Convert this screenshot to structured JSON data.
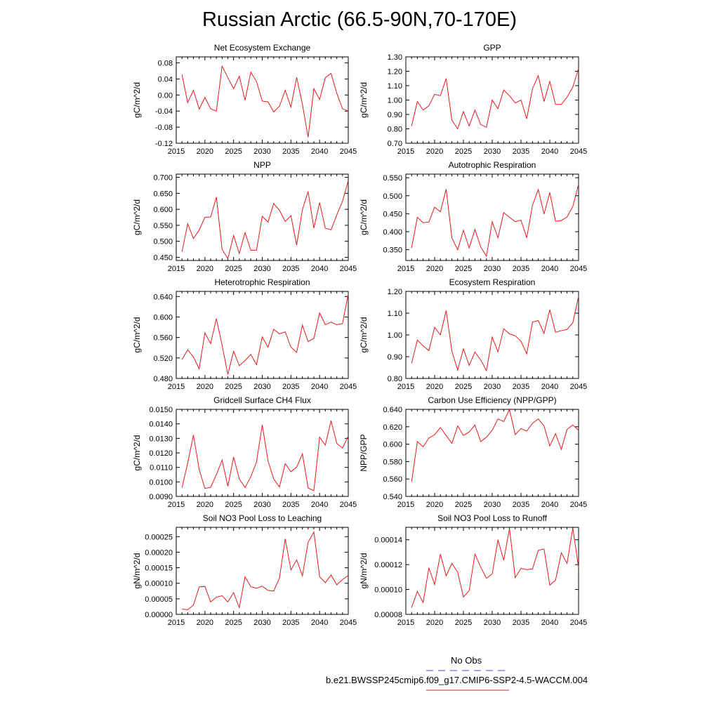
{
  "title": "Russian Arctic (66.5-90N,70-170E)",
  "legend": [
    {
      "label": "No Obs",
      "color": "#4a4ad8",
      "style": "dashed"
    },
    {
      "label": "b.e21.BWSSP245cmip6.f09_g17.CMIP6-SSP2-4.5-WACCM.004",
      "color": "#e81a1a",
      "style": "solid"
    }
  ],
  "chart_data": [
    {
      "type": "line",
      "title": "Net Ecosystem Exchange",
      "ylabel": "gC/m^2/d",
      "xlim": [
        2015,
        2045
      ],
      "ylim": [
        -0.12,
        0.095
      ],
      "xticks": [
        2015,
        2020,
        2025,
        2030,
        2035,
        2040,
        2045
      ],
      "xticklabels": [
        "2015",
        "2020",
        "2025",
        "2030",
        "2035",
        "2040",
        "2045"
      ],
      "yticks": [
        -0.12,
        -0.08,
        -0.04,
        0.0,
        0.04,
        0.08
      ],
      "yticklabels": [
        "-0.12",
        "-0.08",
        "-0.04",
        "0.00",
        "0.04",
        "0.08"
      ],
      "x": [
        2016,
        2017,
        2018,
        2019,
        2020,
        2021,
        2022,
        2023,
        2024,
        2025,
        2026,
        2027,
        2028,
        2029,
        2030,
        2031,
        2032,
        2033,
        2034,
        2035,
        2036,
        2037,
        2038,
        2039,
        2040,
        2041,
        2042,
        2043,
        2044,
        2045
      ],
      "series": [
        {
          "color": "#e81a1a",
          "values": [
            0.051,
            -0.019,
            0.012,
            -0.035,
            -0.006,
            -0.034,
            -0.04,
            0.072,
            0.043,
            0.016,
            0.047,
            -0.013,
            0.057,
            0.034,
            -0.015,
            -0.017,
            -0.042,
            -0.028,
            0.012,
            -0.03,
            0.044,
            -0.023,
            -0.105,
            0.016,
            -0.011,
            0.043,
            0.054,
            0.004,
            -0.034,
            -0.04
          ]
        }
      ]
    },
    {
      "type": "line",
      "title": "GPP",
      "ylabel": "gC/m^2/d",
      "xlim": [
        2015,
        2045
      ],
      "ylim": [
        0.7,
        1.3
      ],
      "xticks": [
        2015,
        2020,
        2025,
        2030,
        2035,
        2040,
        2045
      ],
      "xticklabels": [
        "2015",
        "2020",
        "2025",
        "2030",
        "2035",
        "2040",
        "2045"
      ],
      "yticks": [
        0.7,
        0.8,
        0.9,
        1.0,
        1.1,
        1.2,
        1.3
      ],
      "yticklabels": [
        "0.70",
        "0.80",
        "0.90",
        "1.00",
        "1.10",
        "1.20",
        "1.30"
      ],
      "x": [
        2016,
        2017,
        2018,
        2019,
        2020,
        2021,
        2022,
        2023,
        2024,
        2025,
        2026,
        2027,
        2028,
        2029,
        2030,
        2031,
        2032,
        2033,
        2034,
        2035,
        2036,
        2037,
        2038,
        2039,
        2040,
        2041,
        2042,
        2043,
        2044,
        2045
      ],
      "series": [
        {
          "color": "#e81a1a",
          "values": [
            0.82,
            0.99,
            0.93,
            0.96,
            1.04,
            1.03,
            1.15,
            0.86,
            0.8,
            0.92,
            0.82,
            0.93,
            0.83,
            0.81,
            1.0,
            0.94,
            1.07,
            1.03,
            0.98,
            1.0,
            0.87,
            1.08,
            1.17,
            0.99,
            1.13,
            0.97,
            0.97,
            1.02,
            1.09,
            1.22
          ]
        }
      ]
    },
    {
      "type": "line",
      "title": "NPP",
      "ylabel": "gC/m^2/d",
      "xlim": [
        2015,
        2045
      ],
      "ylim": [
        0.44,
        0.71
      ],
      "xticks": [
        2015,
        2020,
        2025,
        2030,
        2035,
        2040,
        2045
      ],
      "xticklabels": [
        "2015",
        "2020",
        "2025",
        "2030",
        "2035",
        "2040",
        "2045"
      ],
      "yticks": [
        0.45,
        0.5,
        0.55,
        0.6,
        0.65,
        0.7
      ],
      "yticklabels": [
        "0.450",
        "0.500",
        "0.550",
        "0.600",
        "0.650",
        "0.700"
      ],
      "x": [
        2016,
        2017,
        2018,
        2019,
        2020,
        2021,
        2022,
        2023,
        2024,
        2025,
        2026,
        2027,
        2028,
        2029,
        2030,
        2031,
        2032,
        2033,
        2034,
        2035,
        2036,
        2037,
        2038,
        2039,
        2040,
        2041,
        2042,
        2043,
        2044,
        2045
      ],
      "series": [
        {
          "color": "#e81a1a",
          "values": [
            0.467,
            0.555,
            0.509,
            0.535,
            0.575,
            0.576,
            0.638,
            0.475,
            0.446,
            0.518,
            0.462,
            0.527,
            0.472,
            0.472,
            0.578,
            0.56,
            0.618,
            0.597,
            0.562,
            0.58,
            0.488,
            0.599,
            0.656,
            0.541,
            0.621,
            0.541,
            0.536,
            0.583,
            0.625,
            0.69
          ]
        }
      ]
    },
    {
      "type": "line",
      "title": "Autotrophic Respiration",
      "ylabel": "gC/m^2/d",
      "xlim": [
        2015,
        2045
      ],
      "ylim": [
        0.32,
        0.56
      ],
      "xticks": [
        2015,
        2020,
        2025,
        2030,
        2035,
        2040,
        2045
      ],
      "xticklabels": [
        "2015",
        "2020",
        "2025",
        "2030",
        "2035",
        "2040",
        "2045"
      ],
      "yticks": [
        0.35,
        0.4,
        0.45,
        0.5,
        0.55
      ],
      "yticklabels": [
        "0.350",
        "0.400",
        "0.450",
        "0.500",
        "0.550"
      ],
      "x": [
        2016,
        2017,
        2018,
        2019,
        2020,
        2021,
        2022,
        2023,
        2024,
        2025,
        2026,
        2027,
        2028,
        2029,
        2030,
        2031,
        2032,
        2033,
        2034,
        2035,
        2036,
        2037,
        2038,
        2039,
        2040,
        2041,
        2042,
        2043,
        2044,
        2045
      ],
      "series": [
        {
          "color": "#e81a1a",
          "values": [
            0.355,
            0.44,
            0.425,
            0.427,
            0.468,
            0.455,
            0.518,
            0.383,
            0.35,
            0.404,
            0.355,
            0.406,
            0.358,
            0.332,
            0.428,
            0.383,
            0.453,
            0.44,
            0.428,
            0.432,
            0.383,
            0.474,
            0.517,
            0.449,
            0.509,
            0.429,
            0.431,
            0.441,
            0.47,
            0.532
          ]
        }
      ]
    },
    {
      "type": "line",
      "title": "Heterotrophic Respiration",
      "ylabel": "gC/m^2/d",
      "xlim": [
        2015,
        2045
      ],
      "ylim": [
        0.48,
        0.65
      ],
      "xticks": [
        2015,
        2020,
        2025,
        2030,
        2035,
        2040,
        2045
      ],
      "xticklabels": [
        "2015",
        "2020",
        "2025",
        "2030",
        "2035",
        "2040",
        "2045"
      ],
      "yticks": [
        0.48,
        0.52,
        0.56,
        0.6,
        0.64
      ],
      "yticklabels": [
        "0.480",
        "0.520",
        "0.560",
        "0.600",
        "0.640"
      ],
      "x": [
        2016,
        2017,
        2018,
        2019,
        2020,
        2021,
        2022,
        2023,
        2024,
        2025,
        2026,
        2027,
        2028,
        2029,
        2030,
        2031,
        2032,
        2033,
        2034,
        2035,
        2036,
        2037,
        2038,
        2039,
        2040,
        2041,
        2042,
        2043,
        2044,
        2045
      ],
      "series": [
        {
          "color": "#e81a1a",
          "values": [
            0.517,
            0.536,
            0.522,
            0.499,
            0.569,
            0.548,
            0.597,
            0.545,
            0.488,
            0.533,
            0.505,
            0.515,
            0.527,
            0.507,
            0.561,
            0.541,
            0.576,
            0.567,
            0.571,
            0.541,
            0.531,
            0.584,
            0.552,
            0.558,
            0.608,
            0.585,
            0.59,
            0.585,
            0.587,
            0.645
          ]
        }
      ]
    },
    {
      "type": "line",
      "title": "Ecosystem Respiration",
      "ylabel": "gC/m^2/d",
      "xlim": [
        2015,
        2045
      ],
      "ylim": [
        0.8,
        1.2
      ],
      "xticks": [
        2015,
        2020,
        2025,
        2030,
        2035,
        2040,
        2045
      ],
      "xticklabels": [
        "2015",
        "2020",
        "2025",
        "2030",
        "2035",
        "2040",
        "2045"
      ],
      "yticks": [
        0.8,
        0.9,
        1.0,
        1.1,
        1.2
      ],
      "yticklabels": [
        "0.80",
        "0.90",
        "1.00",
        "1.10",
        "1.20"
      ],
      "x": [
        2016,
        2017,
        2018,
        2019,
        2020,
        2021,
        2022,
        2023,
        2024,
        2025,
        2026,
        2027,
        2028,
        2029,
        2030,
        2031,
        2032,
        2033,
        2034,
        2035,
        2036,
        2037,
        2038,
        2039,
        2040,
        2041,
        2042,
        2043,
        2044,
        2045
      ],
      "series": [
        {
          "color": "#e81a1a",
          "values": [
            0.87,
            0.976,
            0.95,
            0.928,
            1.035,
            1.0,
            1.112,
            0.925,
            0.838,
            0.936,
            0.86,
            0.921,
            0.885,
            0.836,
            0.99,
            0.922,
            1.028,
            1.005,
            0.996,
            0.971,
            0.913,
            1.059,
            1.066,
            1.007,
            1.116,
            1.012,
            1.02,
            1.025,
            1.056,
            1.178
          ]
        }
      ]
    },
    {
      "type": "line",
      "title": "Gridcell Surface CH4 Flux",
      "ylabel": "gC/m^2/d",
      "xlim": [
        2015,
        2045
      ],
      "ylim": [
        0.009,
        0.015
      ],
      "xticks": [
        2015,
        2020,
        2025,
        2030,
        2035,
        2040,
        2045
      ],
      "xticklabels": [
        "2015",
        "2020",
        "2025",
        "2030",
        "2035",
        "2040",
        "2045"
      ],
      "yticks": [
        0.009,
        0.01,
        0.011,
        0.012,
        0.013,
        0.014,
        0.015
      ],
      "yticklabels": [
        "0.0090",
        "0.0100",
        "0.0110",
        "0.0120",
        "0.0130",
        "0.0140",
        "0.0150"
      ],
      "x": [
        2016,
        2017,
        2018,
        2019,
        2020,
        2021,
        2022,
        2023,
        2024,
        2025,
        2026,
        2027,
        2028,
        2029,
        2030,
        2031,
        2032,
        2033,
        2034,
        2035,
        2036,
        2037,
        2038,
        2039,
        2040,
        2041,
        2042,
        2043,
        2044,
        2045
      ],
      "series": [
        {
          "color": "#e81a1a",
          "values": [
            0.0096,
            0.0113,
            0.01323,
            0.01085,
            0.00955,
            0.00963,
            0.0105,
            0.01151,
            0.0097,
            0.01171,
            0.0102,
            0.00962,
            0.01035,
            0.01137,
            0.01393,
            0.01145,
            0.0102,
            0.00965,
            0.01126,
            0.0107,
            0.01102,
            0.01193,
            0.00958,
            0.00939,
            0.01309,
            0.01253,
            0.01422,
            0.01265,
            0.01234,
            0.01316
          ]
        }
      ]
    },
    {
      "type": "line",
      "title": "Carbon Use Efficiency (NPP/GPP)",
      "ylabel": "NPP/GPP",
      "xlim": [
        2015,
        2045
      ],
      "ylim": [
        0.54,
        0.64
      ],
      "xticks": [
        2015,
        2020,
        2025,
        2030,
        2035,
        2040,
        2045
      ],
      "xticklabels": [
        "2015",
        "2020",
        "2025",
        "2030",
        "2035",
        "2040",
        "2045"
      ],
      "yticks": [
        0.54,
        0.56,
        0.58,
        0.6,
        0.62,
        0.64
      ],
      "yticklabels": [
        "0.540",
        "0.560",
        "0.580",
        "0.600",
        "0.620",
        "0.640"
      ],
      "x": [
        2016,
        2017,
        2018,
        2019,
        2020,
        2021,
        2022,
        2023,
        2024,
        2025,
        2026,
        2027,
        2028,
        2029,
        2030,
        2031,
        2032,
        2033,
        2034,
        2035,
        2036,
        2037,
        2038,
        2039,
        2040,
        2041,
        2042,
        2043,
        2044,
        2045
      ],
      "series": [
        {
          "color": "#e81a1a",
          "values": [
            0.557,
            0.603,
            0.597,
            0.607,
            0.611,
            0.619,
            0.61,
            0.601,
            0.621,
            0.61,
            0.614,
            0.622,
            0.603,
            0.608,
            0.616,
            0.629,
            0.626,
            0.64,
            0.611,
            0.618,
            0.615,
            0.624,
            0.629,
            0.621,
            0.598,
            0.612,
            0.594,
            0.617,
            0.622,
            0.616
          ]
        }
      ]
    },
    {
      "type": "line",
      "title": "Soil NO3 Pool Loss to Leaching",
      "ylabel": "gN/m^2/d",
      "xlim": [
        2015,
        2045
      ],
      "ylim": [
        0.0,
        0.00028
      ],
      "xticks": [
        2015,
        2020,
        2025,
        2030,
        2035,
        2040,
        2045
      ],
      "xticklabels": [
        "2015",
        "2020",
        "2025",
        "2030",
        "2035",
        "2040",
        "2045"
      ],
      "yticks": [
        0.0,
        5e-05,
        0.0001,
        0.00015,
        0.0002,
        0.00025
      ],
      "yticklabels": [
        "0.00000",
        "0.00005",
        "0.00010",
        "0.00015",
        "0.00020",
        "0.00025"
      ],
      "x": [
        2016,
        2017,
        2018,
        2019,
        2020,
        2021,
        2022,
        2023,
        2024,
        2025,
        2026,
        2027,
        2028,
        2029,
        2030,
        2031,
        2032,
        2033,
        2034,
        2035,
        2036,
        2037,
        2038,
        2039,
        2040,
        2041,
        2042,
        2043,
        2044,
        2045
      ],
      "series": [
        {
          "color": "#e81a1a",
          "values": [
            1.7e-05,
            1.5e-05,
            3e-05,
            8.8e-05,
            9e-05,
            4e-05,
            5.5e-05,
            6e-05,
            4e-05,
            7e-05,
            2.2e-05,
            0.000121,
            8.9e-05,
            8.4e-05,
            9.1e-05,
            7.7e-05,
            7.5e-05,
            0.000117,
            0.000243,
            0.000143,
            0.000175,
            0.000124,
            0.000232,
            0.000265,
            0.000121,
            0.000102,
            0.000127,
            9.5e-05,
            0.000112,
            0.000125
          ]
        }
      ]
    },
    {
      "type": "line",
      "title": "Soil NO3 Pool Loss to Runoff",
      "ylabel": "gN/m^2/d",
      "xlim": [
        2015,
        2045
      ],
      "ylim": [
        8e-05,
        0.00015
      ],
      "xticks": [
        2015,
        2020,
        2025,
        2030,
        2035,
        2040,
        2045
      ],
      "xticklabels": [
        "2015",
        "2020",
        "2025",
        "2030",
        "2035",
        "2040",
        "2045"
      ],
      "yticks": [
        8e-05,
        0.0001,
        0.00012,
        0.00014
      ],
      "yticklabels": [
        "0.00008",
        "0.00010",
        "0.00012",
        "0.00014"
      ],
      "x": [
        2016,
        2017,
        2018,
        2019,
        2020,
        2021,
        2022,
        2023,
        2024,
        2025,
        2026,
        2027,
        2028,
        2029,
        2030,
        2031,
        2032,
        2033,
        2034,
        2035,
        2036,
        2037,
        2038,
        2039,
        2040,
        2041,
        2042,
        2043,
        2044,
        2045
      ],
      "series": [
        {
          "color": "#e81a1a",
          "values": [
            8.55e-05,
            9.85e-05,
            8.95e-05,
            0.0001175,
            0.000104,
            0.0001285,
            0.000111,
            0.000121,
            0.000114,
            9.4e-05,
            9.9e-05,
            0.0001285,
            0.000118,
            0.000109,
            0.0001125,
            0.00014,
            0.0001235,
            0.000149,
            0.0001095,
            0.000117,
            0.000116,
            0.0001165,
            0.0001315,
            0.0001325,
            0.0001035,
            0.0001075,
            0.0001295,
            0.000121,
            0.0001495,
            0.0001175
          ]
        }
      ]
    }
  ]
}
